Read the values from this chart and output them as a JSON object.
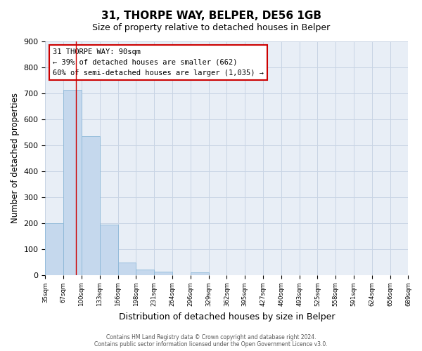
{
  "title": "31, THORPE WAY, BELPER, DE56 1GB",
  "subtitle": "Size of property relative to detached houses in Belper",
  "xlabel": "Distribution of detached houses by size in Belper",
  "ylabel": "Number of detached properties",
  "bin_labels": [
    "35sqm",
    "67sqm",
    "100sqm",
    "133sqm",
    "166sqm",
    "198sqm",
    "231sqm",
    "264sqm",
    "296sqm",
    "329sqm",
    "362sqm",
    "395sqm",
    "427sqm",
    "460sqm",
    "493sqm",
    "525sqm",
    "558sqm",
    "591sqm",
    "624sqm",
    "656sqm",
    "689sqm"
  ],
  "bar_values": [
    200,
    712,
    535,
    193,
    47,
    21,
    12,
    0,
    9,
    0,
    0,
    0,
    0,
    0,
    0,
    0,
    0,
    0,
    0,
    0
  ],
  "bar_color": "#c5d8ed",
  "bar_edge_color": "#8cb8d8",
  "grid_color": "#c8d4e4",
  "background_color": "#e8eef6",
  "vline_color": "#cc0000",
  "vline_x": 1.7,
  "annotation_box_color": "#cc0000",
  "annotation_line1": "31 THORPE WAY: 90sqm",
  "annotation_line2": "← 39% of detached houses are smaller (662)",
  "annotation_line3": "60% of semi-detached houses are larger (1,035) →",
  "ylim": [
    0,
    900
  ],
  "yticks": [
    0,
    100,
    200,
    300,
    400,
    500,
    600,
    700,
    800,
    900
  ],
  "footer_line1": "Contains HM Land Registry data © Crown copyright and database right 2024.",
  "footer_line2": "Contains public sector information licensed under the Open Government Licence v3.0."
}
